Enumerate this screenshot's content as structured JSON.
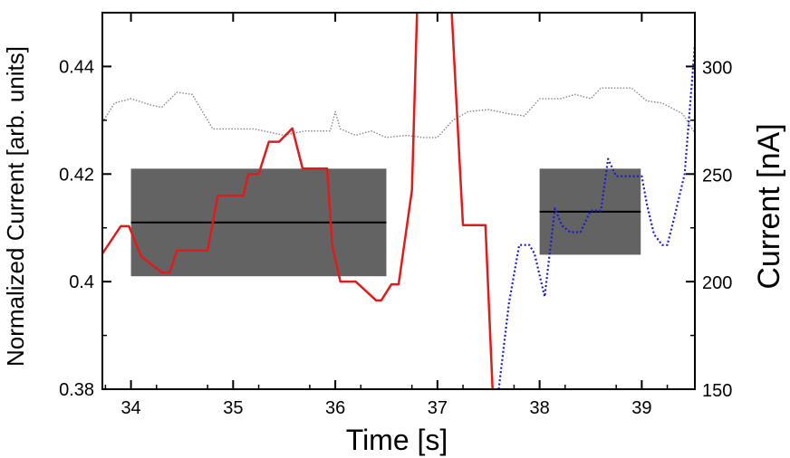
{
  "chart_data": {
    "type": "line",
    "xlabel": "Time [s]",
    "ylabel_left": "Normalized Current [arb. units]",
    "ylabel_right": "Current [nA]",
    "xlim": [
      33.72,
      39.52
    ],
    "ylim_left": [
      0.38,
      0.45
    ],
    "ylim_right": [
      150,
      325
    ],
    "x_ticks": [
      34,
      35,
      36,
      37,
      38,
      39
    ],
    "x_tick_labels": [
      "34",
      "35",
      "36",
      "37",
      "38",
      "39"
    ],
    "y_left_ticks": [
      0.38,
      0.4,
      0.42,
      0.44
    ],
    "y_left_tick_labels": [
      "0.38",
      "0.4",
      "0.42",
      "0.44"
    ],
    "y_right_ticks": [
      150,
      200,
      250,
      300
    ],
    "y_right_tick_labels": [
      "150",
      "200",
      "250",
      "300"
    ],
    "grid": false,
    "series": [
      {
        "axis": "right",
        "color": "#888888",
        "style": "dotted",
        "points": [
          [
            33.72,
            274
          ],
          [
            33.84,
            283
          ],
          [
            34.0,
            285
          ],
          [
            34.2,
            282
          ],
          [
            34.3,
            281
          ],
          [
            34.45,
            288
          ],
          [
            34.6,
            287
          ],
          [
            34.8,
            271
          ],
          [
            35.0,
            271
          ],
          [
            35.2,
            271
          ],
          [
            35.3,
            270
          ],
          [
            35.5,
            268
          ],
          [
            35.7,
            270
          ],
          [
            35.85,
            270
          ],
          [
            35.95,
            270
          ],
          [
            36.0,
            279
          ],
          [
            36.05,
            271
          ],
          [
            36.2,
            268
          ],
          [
            36.35,
            270
          ],
          [
            36.5,
            267
          ],
          [
            36.7,
            268
          ],
          [
            36.85,
            267
          ],
          [
            37.0,
            267
          ],
          [
            37.15,
            275
          ],
          [
            37.3,
            279
          ],
          [
            37.5,
            280
          ],
          [
            37.7,
            278
          ],
          [
            37.85,
            277
          ],
          [
            38.0,
            285
          ],
          [
            38.2,
            285
          ],
          [
            38.35,
            287
          ],
          [
            38.5,
            285
          ],
          [
            38.6,
            290
          ],
          [
            38.75,
            290
          ],
          [
            38.9,
            290
          ],
          [
            39.05,
            284
          ],
          [
            39.2,
            283
          ],
          [
            39.4,
            278
          ],
          [
            39.52,
            269
          ]
        ]
      },
      {
        "axis": "left",
        "color": "#e01b1b",
        "style": "solid",
        "points": [
          [
            33.72,
            0.4052
          ],
          [
            33.9,
            0.4103
          ],
          [
            33.98,
            0.4103
          ],
          [
            34.1,
            0.4047
          ],
          [
            34.3,
            0.4017
          ],
          [
            34.38,
            0.4017
          ],
          [
            34.45,
            0.4058
          ],
          [
            34.75,
            0.4058
          ],
          [
            34.85,
            0.416
          ],
          [
            35.1,
            0.416
          ],
          [
            35.15,
            0.42
          ],
          [
            35.25,
            0.42
          ],
          [
            35.35,
            0.426
          ],
          [
            35.45,
            0.426
          ],
          [
            35.58,
            0.4285
          ],
          [
            35.68,
            0.421
          ],
          [
            35.92,
            0.421
          ],
          [
            35.97,
            0.4067
          ],
          [
            36.05,
            0.4
          ],
          [
            36.2,
            0.4
          ],
          [
            36.4,
            0.3965
          ],
          [
            36.45,
            0.3965
          ],
          [
            36.55,
            0.3995
          ],
          [
            36.62,
            0.3995
          ],
          [
            36.75,
            0.417
          ],
          [
            36.8,
            0.45
          ]
        ]
      },
      {
        "axis": "left",
        "color": "#e01b1b",
        "style": "solid",
        "points": [
          [
            37.14,
            0.45
          ],
          [
            37.25,
            0.4105
          ],
          [
            37.47,
            0.4105
          ],
          [
            37.54,
            0.38
          ]
        ]
      },
      {
        "axis": "right",
        "color": "#1a1ad8",
        "style": "dotted",
        "points": [
          [
            37.6,
            150
          ],
          [
            37.7,
            190
          ],
          [
            37.8,
            217
          ],
          [
            37.9,
            217
          ],
          [
            37.95,
            213
          ],
          [
            38.05,
            193
          ],
          [
            38.15,
            234
          ],
          [
            38.22,
            226
          ],
          [
            38.3,
            223
          ],
          [
            38.4,
            223
          ],
          [
            38.5,
            233
          ],
          [
            38.6,
            233
          ],
          [
            38.67,
            257
          ],
          [
            38.75,
            249
          ],
          [
            38.9,
            249
          ],
          [
            39.0,
            249
          ],
          [
            39.05,
            236
          ],
          [
            39.12,
            222
          ],
          [
            39.2,
            217
          ],
          [
            39.25,
            217
          ],
          [
            39.32,
            230
          ],
          [
            39.42,
            250
          ],
          [
            39.52,
            310
          ]
        ]
      }
    ],
    "shaded_regions": [
      {
        "x": [
          34.0,
          36.5
        ],
        "y": [
          0.401,
          0.421
        ],
        "mean": 0.411,
        "color": "#636363"
      },
      {
        "x": [
          38.0,
          38.99
        ],
        "y": [
          0.405,
          0.421
        ],
        "mean": 0.413,
        "color": "#636363"
      }
    ]
  }
}
